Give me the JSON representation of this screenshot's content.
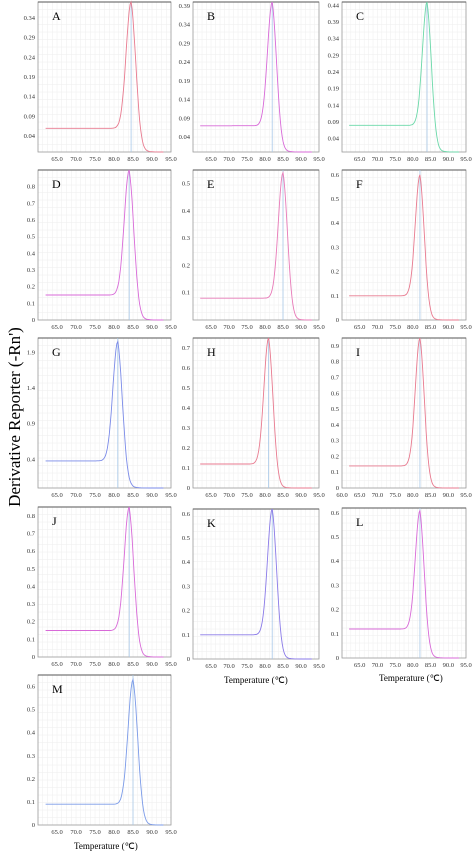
{
  "ylabel": "Derivative Reporter (-Rn')",
  "xlabel": "Temperature (℃)",
  "chart_data": [
    {
      "type": "line",
      "label": "A",
      "x_ticks": [
        "65.0",
        "70.0",
        "75.0",
        "80.0",
        "85.0",
        "90.0",
        "95.0"
      ],
      "y_ticks": [
        "0.04",
        "0.09",
        "0.14",
        "0.19",
        "0.24",
        "0.29",
        "0.34"
      ],
      "xlim": [
        60,
        95
      ],
      "ylim": [
        0,
        0.38
      ],
      "baseline": 0.06,
      "peak_x": 84.5,
      "peak_y": 0.38,
      "color": "#e87a8f",
      "marker_color": "#a8c8e8"
    },
    {
      "type": "line",
      "label": "B",
      "x_ticks": [
        "65.0",
        "70.0",
        "75.0",
        "80.0",
        "85.0",
        "90.0",
        "95.0"
      ],
      "y_ticks": [
        "0.04",
        "0.09",
        "0.14",
        "0.19",
        "0.24",
        "0.29",
        "0.34",
        "0.39"
      ],
      "xlim": [
        60,
        95
      ],
      "ylim": [
        0,
        0.4
      ],
      "baseline": 0.07,
      "peak_x": 82.0,
      "peak_y": 0.4,
      "color": "#d86ad8",
      "marker_color": "#a8c8e8"
    },
    {
      "type": "line",
      "label": "C",
      "x_ticks": [
        "65.0",
        "70.0",
        "75.0",
        "80.0",
        "85.0",
        "90.0",
        "95.0"
      ],
      "y_ticks": [
        "0.04",
        "0.09",
        "0.14",
        "0.19",
        "0.24",
        "0.29",
        "0.34",
        "0.39",
        "0.44"
      ],
      "xlim": [
        60,
        95
      ],
      "ylim": [
        0,
        0.45
      ],
      "baseline": 0.08,
      "peak_x": 84.0,
      "peak_y": 0.45,
      "color": "#6ad8a8",
      "marker_color": "#a8c8e8"
    },
    {
      "type": "line",
      "label": "D",
      "x_ticks": [
        "65.0",
        "70.0",
        "75.0",
        "80.0",
        "85.0",
        "90.0",
        "95.0"
      ],
      "y_ticks": [
        "0",
        "0.1",
        "0.2",
        "0.3",
        "0.4",
        "0.5",
        "0.6",
        "0.7",
        "0.8"
      ],
      "xlim": [
        60,
        95
      ],
      "ylim": [
        0,
        0.9
      ],
      "baseline": 0.15,
      "peak_x": 84.0,
      "peak_y": 0.9,
      "color": "#d86ad8",
      "marker_color": "#a8c8e8"
    },
    {
      "type": "line",
      "label": "E",
      "x_ticks": [
        "65.0",
        "70.0",
        "75.0",
        "80.0",
        "85.0",
        "90.0",
        "95.0"
      ],
      "y_ticks": [
        "0.1",
        "0.2",
        "0.3",
        "0.4",
        "0.5"
      ],
      "xlim": [
        60,
        95
      ],
      "ylim": [
        0,
        0.55
      ],
      "baseline": 0.08,
      "peak_x": 85.0,
      "peak_y": 0.54,
      "color": "#e87ab8",
      "marker_color": "#a8c8e8"
    },
    {
      "type": "line",
      "label": "F",
      "x_ticks": [
        "65.0",
        "70.0",
        "75.0",
        "80.0",
        "85.0",
        "90.0",
        "95.0"
      ],
      "y_ticks": [
        "0",
        "0.1",
        "0.2",
        "0.3",
        "0.4",
        "0.5",
        "0.6"
      ],
      "xlim": [
        60,
        95
      ],
      "ylim": [
        0,
        0.62
      ],
      "baseline": 0.1,
      "peak_x": 82.0,
      "peak_y": 0.6,
      "color": "#e87a8f",
      "marker_color": "#a8c8e8"
    },
    {
      "type": "line",
      "label": "G",
      "x_ticks": [
        "65.0",
        "70.0",
        "75.0",
        "80.0",
        "85.0",
        "90.0",
        "95.0"
      ],
      "y_ticks": [
        "0.4",
        "0.9",
        "1.4",
        "1.9"
      ],
      "xlim": [
        60,
        95
      ],
      "ylim": [
        0,
        2.1
      ],
      "baseline": 0.38,
      "peak_x": 81.0,
      "peak_y": 2.05,
      "color": "#7a8ae8",
      "marker_color": "#a8c8e8"
    },
    {
      "type": "line",
      "label": "H",
      "x_ticks": [
        "65.0",
        "70.0",
        "75.0",
        "80.0",
        "85.0",
        "90.0",
        "95.0"
      ],
      "y_ticks": [
        "0",
        "0.1",
        "0.2",
        "0.3",
        "0.4",
        "0.5",
        "0.6",
        "0.7"
      ],
      "xlim": [
        60,
        95
      ],
      "ylim": [
        0,
        0.75
      ],
      "baseline": 0.12,
      "peak_x": 81.0,
      "peak_y": 0.75,
      "color": "#e87a8f",
      "marker_color": "#a8c8e8"
    },
    {
      "type": "line",
      "label": "I",
      "x_ticks": [
        "60.0",
        "65.0",
        "70.0",
        "75.0",
        "80.0",
        "85.0",
        "90.0",
        "95.0"
      ],
      "y_ticks": [
        "0",
        "0.1",
        "0.2",
        "0.3",
        "0.4",
        "0.5",
        "0.6",
        "0.7",
        "0.8",
        "0.9"
      ],
      "xlim": [
        60,
        95
      ],
      "ylim": [
        0,
        0.95
      ],
      "baseline": 0.14,
      "peak_x": 82.0,
      "peak_y": 0.95,
      "color": "#e87a8f",
      "marker_color": "#a8c8e8"
    },
    {
      "type": "line",
      "label": "J",
      "x_ticks": [
        "65.0",
        "70.0",
        "75.0",
        "80.0",
        "85.0",
        "90.0",
        "95.0"
      ],
      "y_ticks": [
        "0",
        "0.1",
        "0.2",
        "0.3",
        "0.4",
        "0.5",
        "0.6",
        "0.7",
        "0.8"
      ],
      "xlim": [
        60,
        95
      ],
      "ylim": [
        0,
        0.85
      ],
      "baseline": 0.15,
      "peak_x": 84.0,
      "peak_y": 0.85,
      "color": "#d86ad8",
      "marker_color": "#a8c8e8"
    },
    {
      "type": "line",
      "label": "K",
      "x_ticks": [
        "65.0",
        "70.0",
        "75.0",
        "80.0",
        "85.0",
        "90.0",
        "95.0"
      ],
      "y_ticks": [
        "0",
        "0.1",
        "0.2",
        "0.3",
        "0.4",
        "0.5",
        "0.6"
      ],
      "xlim": [
        60,
        95
      ],
      "ylim": [
        0,
        0.62
      ],
      "baseline": 0.1,
      "peak_x": 82.0,
      "peak_y": 0.62,
      "color": "#8a7ae8",
      "marker_color": "#a8c8e8"
    },
    {
      "type": "line",
      "label": "L",
      "x_ticks": [
        "65.0",
        "70.0",
        "75.0",
        "80.0",
        "85.0",
        "90.0",
        "95.0"
      ],
      "y_ticks": [
        "0",
        "0.1",
        "0.2",
        "0.3",
        "0.4",
        "0.5",
        "0.6"
      ],
      "xlim": [
        60,
        95
      ],
      "ylim": [
        0,
        0.62
      ],
      "baseline": 0.12,
      "peak_x": 82.0,
      "peak_y": 0.61,
      "color": "#d86ad8",
      "marker_color": "#a8c8e8"
    },
    {
      "type": "line",
      "label": "M",
      "x_ticks": [
        "65.0",
        "70.0",
        "75.0",
        "80.0",
        "85.0",
        "90.0",
        "95.0"
      ],
      "y_ticks": [
        "0",
        "0.1",
        "0.2",
        "0.3",
        "0.4",
        "0.5",
        "0.6"
      ],
      "xlim": [
        60,
        95
      ],
      "ylim": [
        0,
        0.65
      ],
      "baseline": 0.09,
      "peak_x": 85.0,
      "peak_y": 0.63,
      "color": "#7a9ae8",
      "marker_color": "#a8c8e8"
    }
  ]
}
